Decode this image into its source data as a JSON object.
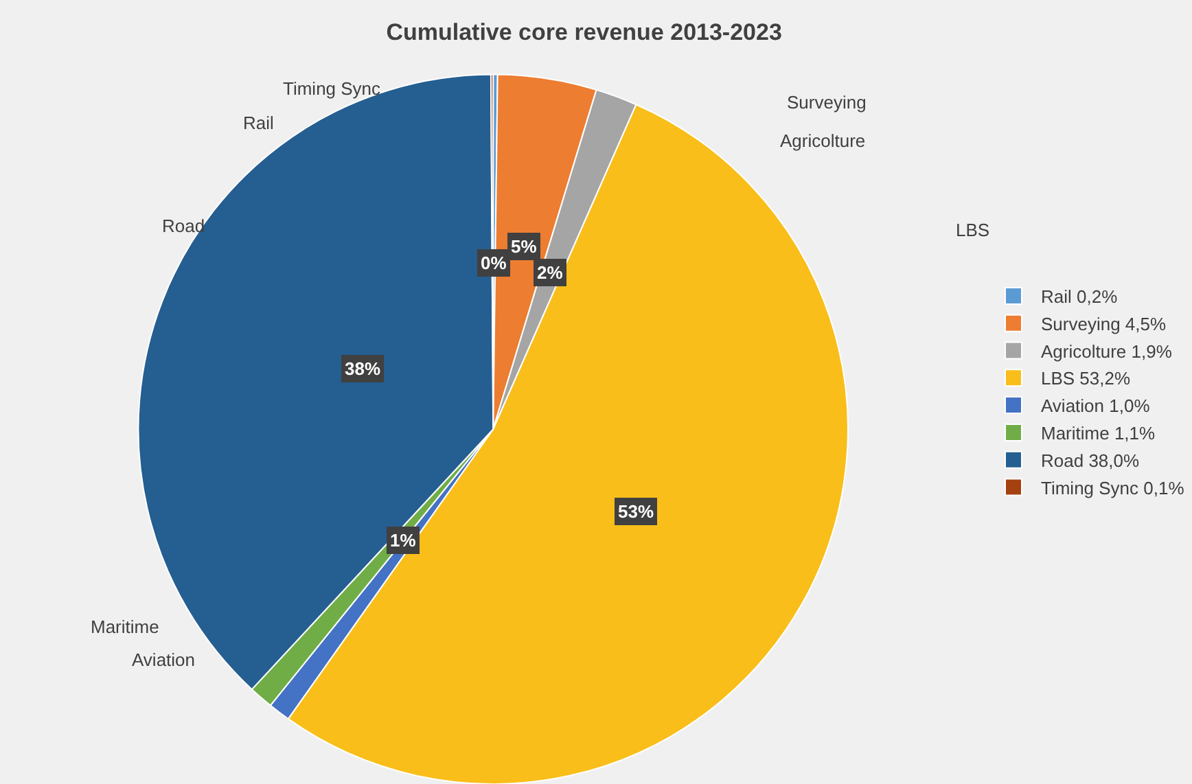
{
  "chart_data": {
    "type": "pie",
    "title": "Cumulative core revenue 2013-2023",
    "categories": [
      "Rail 0,2%",
      "Surveying 4,5%",
      "Agricolture 1,9%",
      "LBS 53,2%",
      "Aviation 1,0%",
      "Maritime 1,1%",
      "Road 38,0%",
      "Timing Sync 0,1%"
    ],
    "values": [
      0.2,
      4.5,
      1.9,
      53.2,
      1.0,
      1.1,
      38.0,
      0.1
    ],
    "colors": [
      "#5b9bd5",
      "#ed7d31",
      "#a5a5a5",
      "#f9be1a",
      "#4472c4",
      "#70ad47",
      "#255e91",
      "#a5410f"
    ],
    "value_labels": [
      "0%",
      "5%",
      "2%",
      "53%",
      null,
      "1%",
      "38%",
      null
    ],
    "annotations": [
      "Rail",
      "Surveying",
      "Agricolture",
      "LBS",
      "Aviation",
      "Maritime",
      "Road",
      "Timing Sync"
    ],
    "legend": "right"
  }
}
